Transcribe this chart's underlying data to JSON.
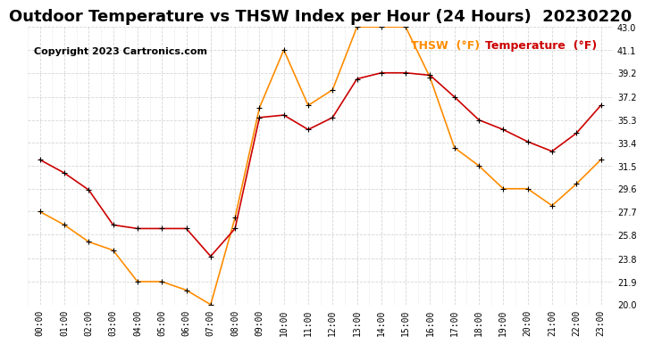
{
  "title": "Outdoor Temperature vs THSW Index per Hour (24 Hours)  20230220",
  "copyright": "Copyright 2023 Cartronics.com",
  "legend_thsw": "THSW  (°F)",
  "legend_temp": "Temperature  (°F)",
  "hours": [
    0,
    1,
    2,
    3,
    4,
    5,
    6,
    7,
    8,
    9,
    10,
    11,
    12,
    13,
    14,
    15,
    16,
    17,
    18,
    19,
    20,
    21,
    22,
    23
  ],
  "thsw": [
    27.7,
    26.6,
    25.2,
    24.5,
    21.9,
    21.9,
    21.2,
    20.0,
    27.2,
    36.3,
    41.1,
    36.5,
    37.8,
    43.0,
    43.0,
    43.0,
    38.8,
    33.0,
    31.5,
    29.6,
    29.6,
    28.2,
    30.0,
    32.0
  ],
  "temperature": [
    32.0,
    30.9,
    29.5,
    26.6,
    26.3,
    26.3,
    26.3,
    24.0,
    26.3,
    35.5,
    35.7,
    34.5,
    35.5,
    38.7,
    39.2,
    39.2,
    39.0,
    37.2,
    35.3,
    34.5,
    33.5,
    32.7,
    34.2,
    36.5
  ],
  "ylim_min": 20.0,
  "ylim_max": 43.0,
  "yticks": [
    20.0,
    21.9,
    23.8,
    25.8,
    27.7,
    29.6,
    31.5,
    33.4,
    35.3,
    37.2,
    39.2,
    41.1,
    43.0
  ],
  "thsw_color": "#FF8C00",
  "temp_color": "#CC0000",
  "marker_color": "#000000",
  "background_color": "#FFFFFF",
  "grid_color": "#CCCCCC",
  "title_fontsize": 13,
  "copyright_fontsize": 8,
  "legend_fontsize": 9
}
